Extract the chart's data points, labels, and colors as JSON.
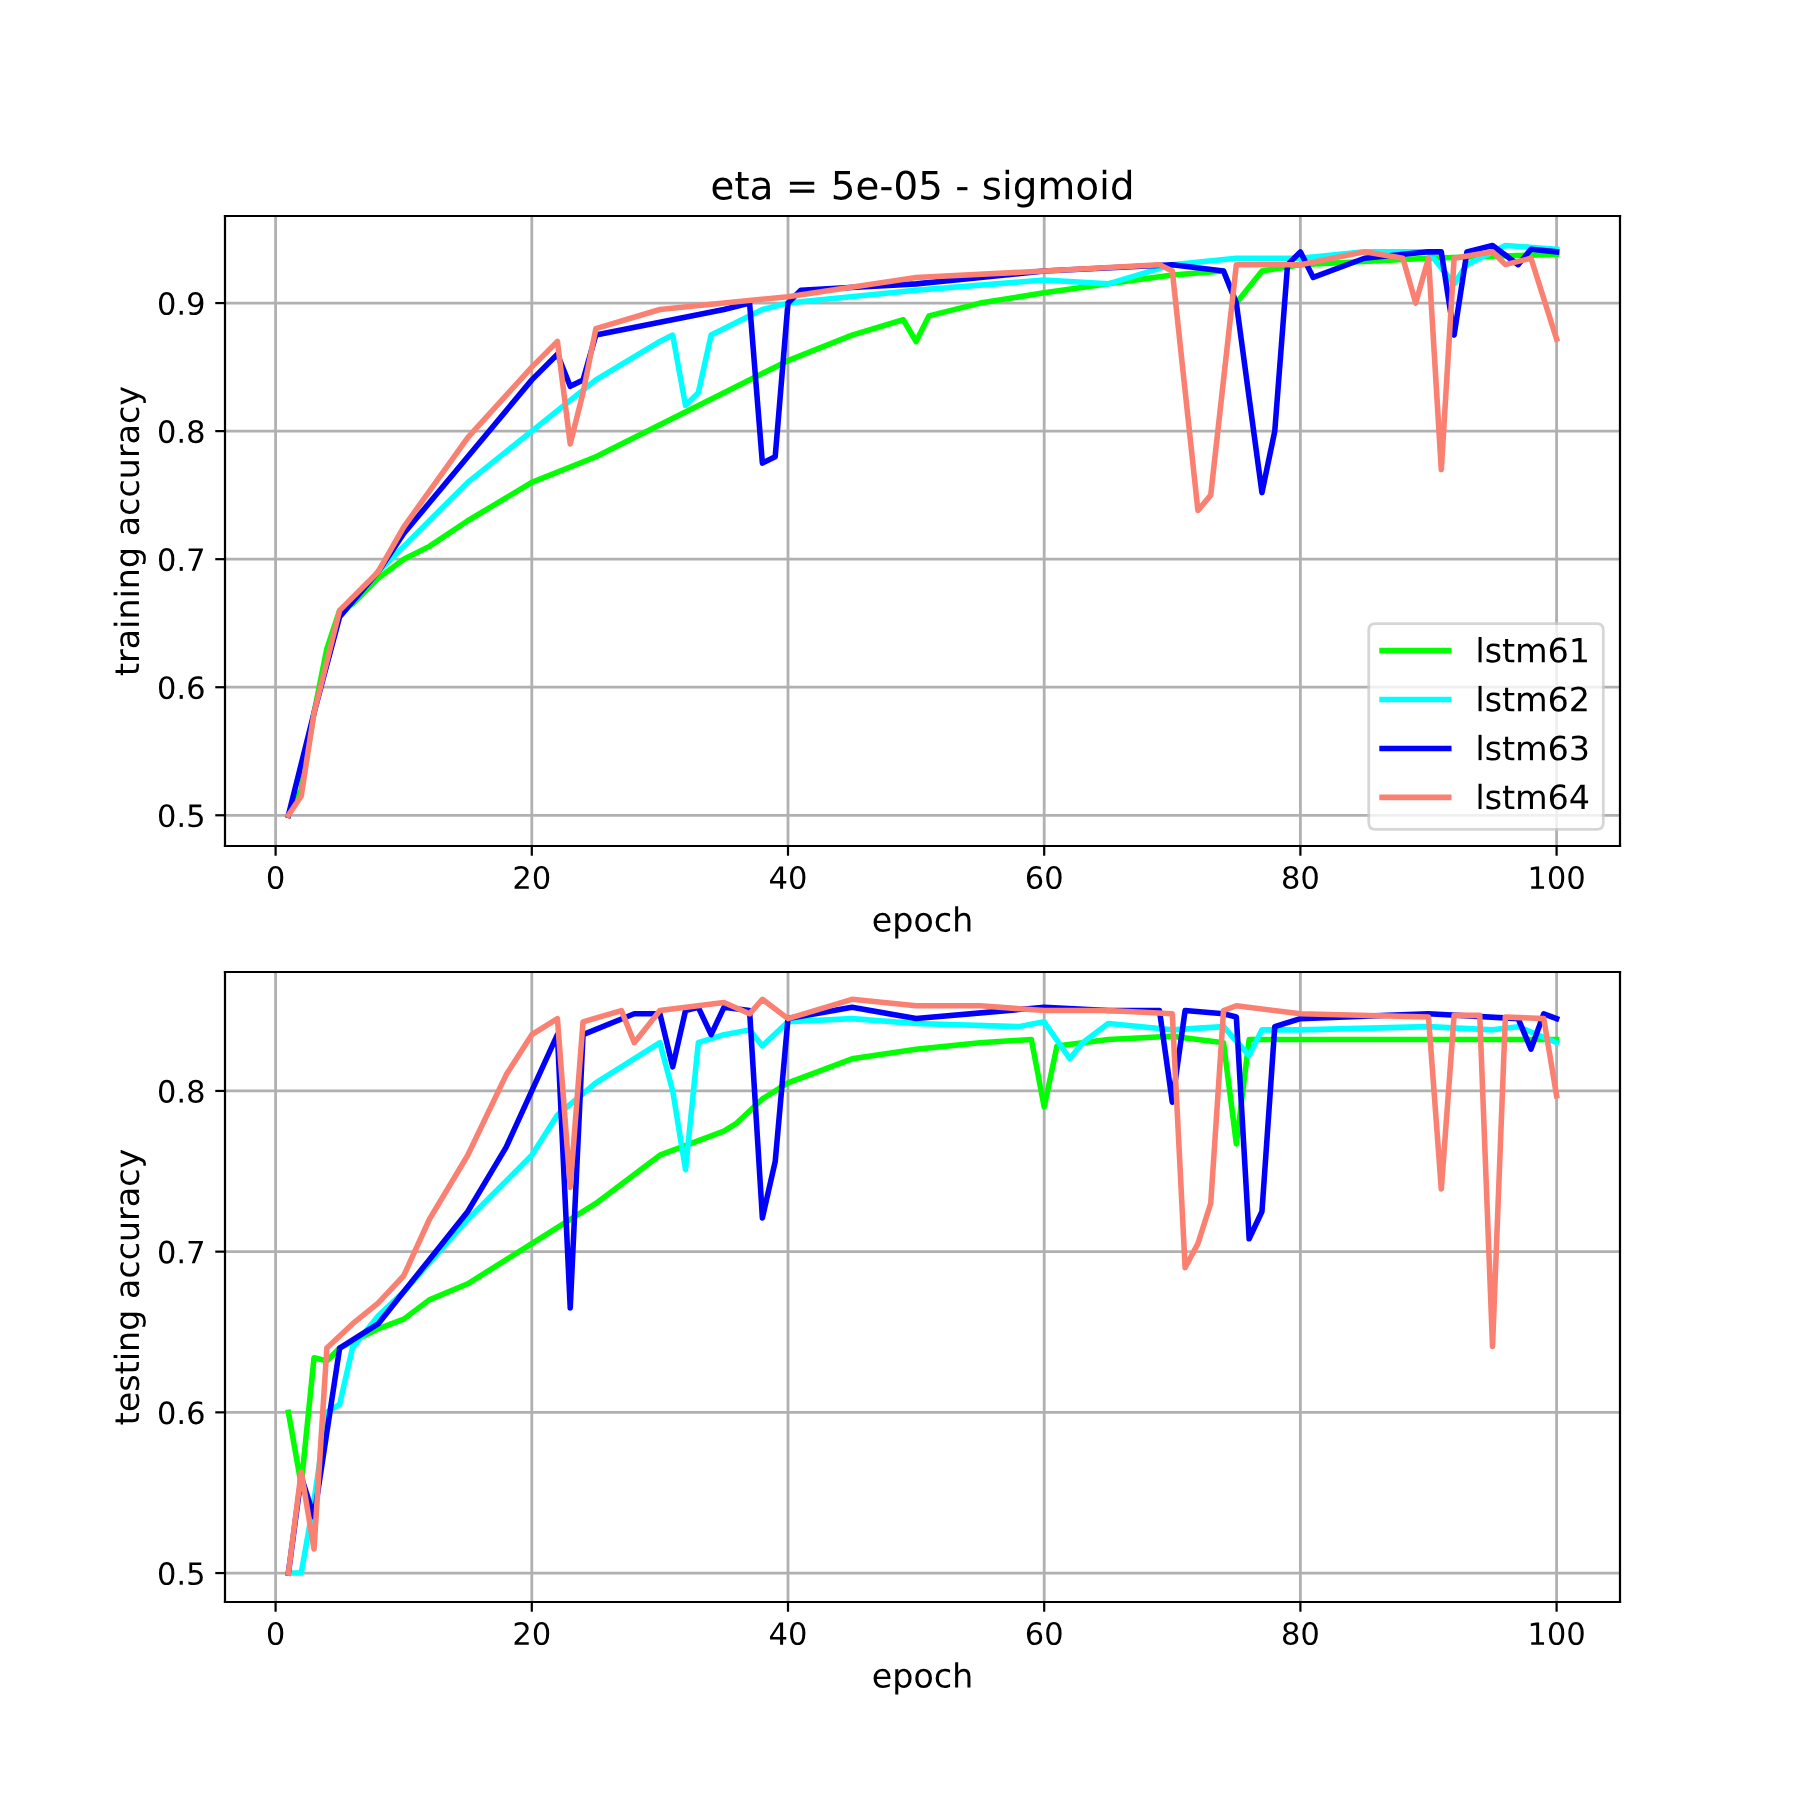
{
  "chart_data": [
    {
      "type": "line",
      "title": "eta = 5e-05 - sigmoid",
      "xlabel": "epoch",
      "ylabel": "training accuracy",
      "grid": true,
      "legend": "lower right",
      "xlim": [
        -3.95,
        104.95
      ],
      "xticks": [
        0,
        20,
        40,
        60,
        80,
        100
      ],
      "ylim": [
        0.476,
        0.968
      ],
      "yticks": [
        0.5,
        0.6,
        0.7,
        0.8,
        0.9
      ],
      "series": [
        {
          "name": "lstm61",
          "color": "#00ff00",
          "x": [
            1,
            2,
            3,
            4,
            5,
            6,
            8,
            10,
            12,
            15,
            20,
            25,
            30,
            35,
            40,
            45,
            49,
            50,
            51,
            55,
            60,
            65,
            70,
            74,
            75,
            77,
            80,
            90,
            100
          ],
          "values": [
            0.5,
            0.52,
            0.58,
            0.63,
            0.66,
            0.665,
            0.685,
            0.7,
            0.71,
            0.73,
            0.76,
            0.78,
            0.805,
            0.83,
            0.855,
            0.875,
            0.887,
            0.87,
            0.89,
            0.9,
            0.908,
            0.915,
            0.922,
            0.925,
            0.9,
            0.925,
            0.93,
            0.935,
            0.938
          ]
        },
        {
          "name": "lstm62",
          "color": "#00ffff",
          "x": [
            5,
            8,
            10,
            15,
            20,
            25,
            30,
            31,
            32,
            33,
            34,
            38,
            40,
            50,
            60,
            65,
            70,
            75,
            80,
            85,
            90,
            92,
            93,
            96,
            100
          ],
          "values": [
            0.655,
            0.69,
            0.71,
            0.76,
            0.8,
            0.84,
            0.87,
            0.875,
            0.82,
            0.83,
            0.875,
            0.895,
            0.9,
            0.91,
            0.918,
            0.915,
            0.93,
            0.935,
            0.935,
            0.94,
            0.94,
            0.915,
            0.93,
            0.945,
            0.942
          ]
        },
        {
          "name": "lstm63",
          "color": "#0000ff",
          "x": [
            1,
            3,
            5,
            8,
            10,
            15,
            20,
            22,
            23,
            24,
            25,
            30,
            35,
            37,
            38,
            39,
            40,
            41,
            50,
            60,
            70,
            74,
            75,
            77,
            78,
            79,
            80,
            81,
            85,
            90,
            91,
            92,
            93,
            95,
            97,
            98,
            100
          ],
          "values": [
            0.5,
            0.58,
            0.655,
            0.69,
            0.72,
            0.78,
            0.84,
            0.86,
            0.835,
            0.84,
            0.875,
            0.885,
            0.895,
            0.9,
            0.775,
            0.78,
            0.9,
            0.91,
            0.915,
            0.925,
            0.93,
            0.925,
            0.9,
            0.752,
            0.8,
            0.93,
            0.94,
            0.92,
            0.935,
            0.94,
            0.94,
            0.875,
            0.94,
            0.945,
            0.93,
            0.942,
            0.94
          ]
        },
        {
          "name": "lstm64",
          "color": "#fa8072",
          "x": [
            1,
            2,
            3,
            5,
            8,
            10,
            15,
            20,
            22,
            23,
            24,
            25,
            30,
            35,
            40,
            50,
            60,
            69,
            70,
            72,
            73,
            75,
            80,
            85,
            88,
            89,
            90,
            91,
            92,
            95,
            96,
            98,
            100
          ],
          "values": [
            0.5,
            0.515,
            0.58,
            0.66,
            0.69,
            0.725,
            0.795,
            0.85,
            0.87,
            0.79,
            0.83,
            0.88,
            0.895,
            0.9,
            0.905,
            0.92,
            0.925,
            0.93,
            0.925,
            0.738,
            0.75,
            0.93,
            0.93,
            0.94,
            0.935,
            0.9,
            0.935,
            0.77,
            0.935,
            0.94,
            0.93,
            0.935,
            0.872
          ]
        }
      ]
    },
    {
      "type": "line",
      "xlabel": "epoch",
      "ylabel": "testing accuracy",
      "grid": true,
      "xlim": [
        -3.95,
        104.95
      ],
      "xticks": [
        0,
        20,
        40,
        60,
        80,
        100
      ],
      "ylim": [
        0.482,
        0.874
      ],
      "yticks": [
        0.5,
        0.6,
        0.7,
        0.8
      ],
      "series": [
        {
          "color": "#00ff00",
          "x": [
            1,
            2,
            3,
            4,
            5,
            8,
            10,
            12,
            15,
            20,
            25,
            30,
            35,
            36,
            38,
            40,
            45,
            50,
            55,
            59,
            60,
            61,
            65,
            70,
            74,
            75,
            76,
            80,
            90,
            100
          ],
          "values": [
            0.6,
            0.555,
            0.634,
            0.632,
            0.64,
            0.652,
            0.658,
            0.67,
            0.68,
            0.705,
            0.73,
            0.76,
            0.775,
            0.78,
            0.795,
            0.805,
            0.82,
            0.826,
            0.83,
            0.832,
            0.79,
            0.828,
            0.832,
            0.834,
            0.83,
            0.767,
            0.832,
            0.832,
            0.832,
            0.832
          ]
        },
        {
          "color": "#00ffff",
          "x": [
            1,
            2,
            3,
            4,
            5,
            6,
            8,
            10,
            15,
            20,
            22,
            25,
            30,
            31,
            32,
            33,
            35,
            37,
            38,
            40,
            45,
            50,
            58,
            60,
            62,
            63,
            65,
            70,
            74,
            76,
            77,
            80,
            90,
            95,
            97,
            100
          ],
          "values": [
            0.5,
            0.5,
            0.545,
            0.6,
            0.605,
            0.64,
            0.66,
            0.675,
            0.72,
            0.76,
            0.785,
            0.805,
            0.83,
            0.8,
            0.751,
            0.83,
            0.835,
            0.838,
            0.828,
            0.843,
            0.845,
            0.842,
            0.84,
            0.843,
            0.82,
            0.83,
            0.842,
            0.838,
            0.84,
            0.822,
            0.838,
            0.838,
            0.84,
            0.838,
            0.84,
            0.83
          ]
        },
        {
          "color": "#0000ff",
          "x": [
            1,
            2,
            3,
            5,
            8,
            10,
            12,
            15,
            18,
            20,
            22,
            23,
            24,
            28,
            30,
            31,
            32,
            33,
            34,
            35,
            37,
            38,
            39,
            40,
            45,
            50,
            60,
            65,
            69,
            70,
            71,
            74,
            75,
            76,
            77,
            78,
            80,
            90,
            97,
            98,
            99,
            100
          ],
          "values": [
            0.5,
            0.56,
            0.535,
            0.64,
            0.655,
            0.675,
            0.695,
            0.725,
            0.765,
            0.8,
            0.835,
            0.665,
            0.835,
            0.848,
            0.848,
            0.815,
            0.85,
            0.852,
            0.835,
            0.852,
            0.85,
            0.721,
            0.756,
            0.845,
            0.852,
            0.845,
            0.852,
            0.85,
            0.85,
            0.793,
            0.85,
            0.848,
            0.846,
            0.708,
            0.725,
            0.84,
            0.845,
            0.848,
            0.845,
            0.826,
            0.848,
            0.845
          ]
        },
        {
          "color": "#fa8072",
          "x": [
            1,
            2,
            3,
            4,
            6,
            8,
            10,
            12,
            15,
            18,
            20,
            22,
            23,
            24,
            27,
            28,
            30,
            35,
            37,
            38,
            40,
            45,
            50,
            55,
            60,
            65,
            70,
            71,
            72,
            73,
            74,
            75,
            80,
            90,
            91,
            92,
            94,
            95,
            96,
            99,
            100
          ],
          "values": [
            0.5,
            0.563,
            0.515,
            0.64,
            0.655,
            0.668,
            0.685,
            0.72,
            0.76,
            0.81,
            0.835,
            0.845,
            0.74,
            0.843,
            0.85,
            0.83,
            0.85,
            0.855,
            0.848,
            0.857,
            0.845,
            0.857,
            0.853,
            0.853,
            0.85,
            0.85,
            0.848,
            0.69,
            0.705,
            0.73,
            0.85,
            0.853,
            0.848,
            0.846,
            0.739,
            0.847,
            0.847,
            0.641,
            0.846,
            0.845,
            0.797
          ]
        }
      ]
    }
  ]
}
